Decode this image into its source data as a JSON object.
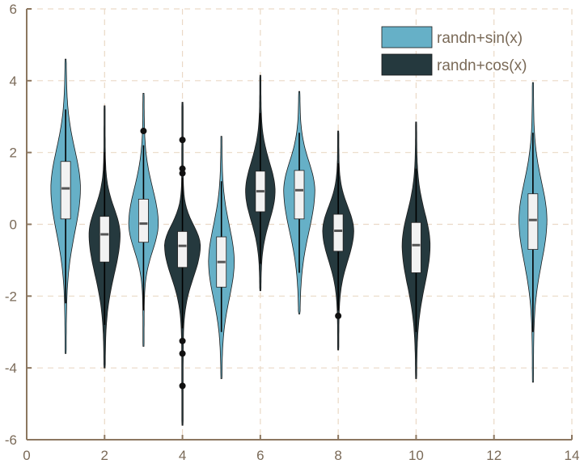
{
  "chart_data": {
    "type": "violin",
    "title": "",
    "xlabel": "",
    "ylabel": "",
    "xlim": [
      0,
      14
    ],
    "ylim": [
      -6,
      6
    ],
    "xticks": [
      0,
      2,
      4,
      6,
      8,
      10,
      12,
      14
    ],
    "yticks": [
      -6,
      -4,
      -2,
      0,
      2,
      4,
      6
    ],
    "grid": true,
    "legend_position": "top-right",
    "colors": {
      "sin": "#66b0c7",
      "cos": "#25393e",
      "box": "#f2f2f2",
      "median": "#555555"
    },
    "series": [
      {
        "name": "randn+sin(x)",
        "color": "#66b0c7",
        "violins": [
          {
            "x": 1,
            "min": -3.6,
            "max": 4.6,
            "q1": 0.15,
            "median": 1.0,
            "q3": 1.75,
            "whisker_low": -2.2,
            "whisker_high": 3.2,
            "halfwidth": 0.38,
            "outliers": []
          },
          {
            "x": 3,
            "min": -3.4,
            "max": 3.65,
            "q1": -0.5,
            "median": 0.02,
            "q3": 0.7,
            "whisker_low": -2.4,
            "whisker_high": 2.2,
            "halfwidth": 0.38,
            "outliers": [
              2.6
            ]
          },
          {
            "x": 5,
            "min": -4.3,
            "max": 2.45,
            "q1": -1.75,
            "median": -1.05,
            "q3": -0.35,
            "whisker_low": -3.0,
            "whisker_high": 1.2,
            "halfwidth": 0.33,
            "outliers": []
          },
          {
            "x": 7,
            "min": -2.5,
            "max": 3.7,
            "q1": 0.15,
            "median": 0.95,
            "q3": 1.5,
            "whisker_low": -1.35,
            "whisker_high": 2.55,
            "halfwidth": 0.4,
            "outliers": []
          },
          {
            "x": 13,
            "min": -4.4,
            "max": 3.95,
            "q1": -0.7,
            "median": 0.12,
            "q3": 0.85,
            "whisker_low": -3.0,
            "whisker_high": 2.55,
            "halfwidth": 0.36,
            "outliers": []
          }
        ]
      },
      {
        "name": "randn+cos(x)",
        "color": "#25393e",
        "violins": [
          {
            "x": 2,
            "min": -4.0,
            "max": 3.3,
            "q1": -1.05,
            "median": -0.28,
            "q3": 0.22,
            "whisker_low": -2.8,
            "whisker_high": 2.0,
            "halfwidth": 0.4,
            "outliers": []
          },
          {
            "x": 4,
            "min": -5.6,
            "max": 3.4,
            "q1": -1.2,
            "median": -0.6,
            "q3": -0.2,
            "whisker_low": -2.9,
            "whisker_high": 1.3,
            "halfwidth": 0.46,
            "outliers": [
              2.35,
              1.55,
              1.42,
              -3.25,
              -3.6,
              -4.5
            ]
          },
          {
            "x": 6,
            "min": -1.85,
            "max": 4.15,
            "q1": 0.35,
            "median": 0.92,
            "q3": 1.48,
            "whisker_low": -1.1,
            "whisker_high": 3.1,
            "halfwidth": 0.38,
            "outliers": []
          },
          {
            "x": 8,
            "min": -3.5,
            "max": 2.6,
            "q1": -0.75,
            "median": -0.18,
            "q3": 0.28,
            "whisker_low": -2.4,
            "whisker_high": 1.7,
            "halfwidth": 0.4,
            "outliers": [
              -2.55
            ]
          },
          {
            "x": 10,
            "min": -4.3,
            "max": 2.85,
            "q1": -1.35,
            "median": -0.58,
            "q3": 0.05,
            "whisker_low": -3.0,
            "whisker_high": 1.55,
            "halfwidth": 0.36,
            "outliers": []
          }
        ]
      }
    ]
  }
}
